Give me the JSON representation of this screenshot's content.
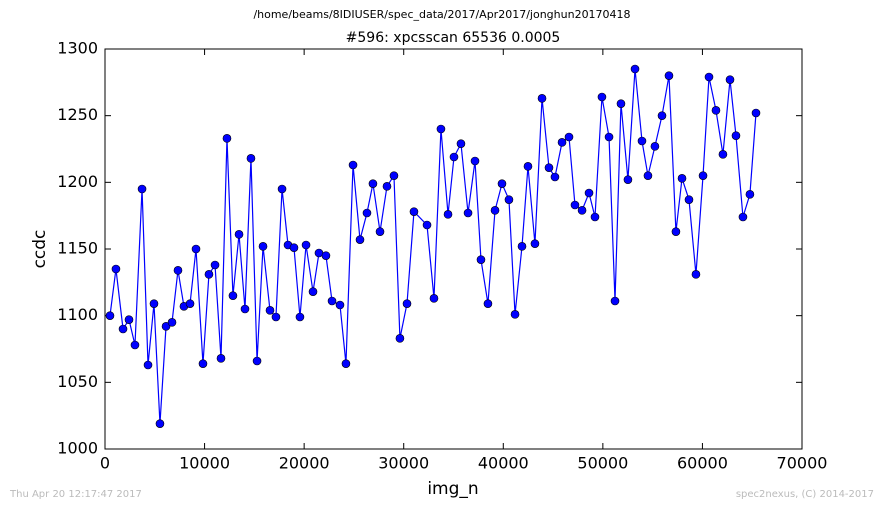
{
  "chart_data": {
    "type": "line",
    "suptitle": "/home/beams/8IDIUSER/spec_data/2017/Apr2017/jonghun20170418",
    "title": "#596: xpcsscan 65536 0.0005",
    "xlabel": "img_n",
    "ylabel": "ccdc",
    "footer_left": "Thu Apr 20 12:17:47 2017",
    "footer_right": "spec2nexus, (C) 2014-2017",
    "xlim": [
      0,
      70000
    ],
    "ylim": [
      1000,
      1300
    ],
    "xticks": [
      0,
      10000,
      20000,
      30000,
      40000,
      50000,
      60000,
      70000
    ],
    "yticks": [
      1000,
      1050,
      1100,
      1150,
      1200,
      1250,
      1300
    ],
    "grid": false,
    "series": [
      {
        "name": "ccdc",
        "color": "#0000ff",
        "x": [
          500,
          1100,
          1810,
          2410,
          3010,
          3720,
          4320,
          4920,
          5520,
          6130,
          6730,
          7330,
          7930,
          8540,
          9140,
          9840,
          10440,
          11050,
          11650,
          12250,
          12850,
          13460,
          14060,
          14660,
          15270,
          15870,
          16570,
          17170,
          17780,
          18380,
          18980,
          19580,
          20190,
          20890,
          21490,
          22190,
          22800,
          23600,
          24200,
          24910,
          25610,
          26310,
          26910,
          27620,
          28320,
          29020,
          29620,
          30330,
          31030,
          32340,
          33040,
          33740,
          34450,
          35050,
          35750,
          36460,
          37160,
          37760,
          38460,
          39170,
          39870,
          40570,
          41180,
          41880,
          42480,
          43180,
          43890,
          44590,
          45190,
          45900,
          46600,
          47200,
          47910,
          48610,
          49210,
          49910,
          50620,
          51220,
          51820,
          52520,
          53230,
          53930,
          54530,
          55230,
          55940,
          56640,
          57340,
          57950,
          58650,
          59350,
          60060,
          60660,
          61360,
          62060,
          62770,
          63370,
          64070,
          64770,
          65380
        ],
        "values": [
          1100,
          1135,
          1090,
          1097,
          1078,
          1195,
          1063,
          1109,
          1019,
          1092,
          1095,
          1134,
          1107,
          1109,
          1150,
          1064,
          1131,
          1138,
          1068,
          1233,
          1115,
          1161,
          1105,
          1218,
          1066,
          1152,
          1104,
          1099,
          1195,
          1153,
          1151,
          1099,
          1153,
          1118,
          1147,
          1145,
          1111,
          1108,
          1064,
          1213,
          1157,
          1177,
          1199,
          1163,
          1197,
          1205,
          1083,
          1109,
          1178,
          1168,
          1113,
          1240,
          1176,
          1219,
          1229,
          1177,
          1216,
          1142,
          1109,
          1179,
          1199,
          1187,
          1101,
          1152,
          1212,
          1154,
          1263,
          1211,
          1204,
          1230,
          1234,
          1183,
          1179,
          1192,
          1174,
          1264,
          1234,
          1111,
          1259,
          1202,
          1285,
          1231,
          1205,
          1227,
          1250,
          1280,
          1163,
          1203,
          1187,
          1131,
          1205,
          1279,
          1254,
          1221,
          1277,
          1235,
          1174,
          1191,
          1252
        ]
      }
    ]
  }
}
